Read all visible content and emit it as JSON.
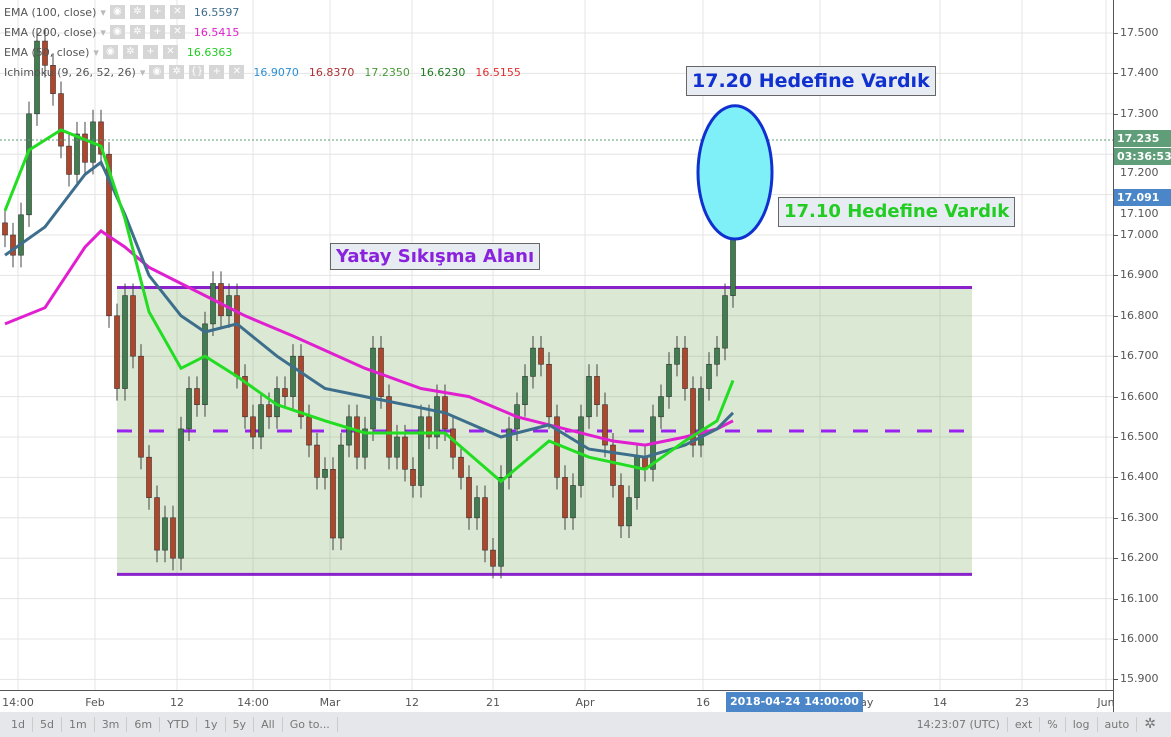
{
  "legend": [
    {
      "name": "EMA (100, close)",
      "values": [
        "16.5597"
      ],
      "colors": [
        "#3d6e8c"
      ]
    },
    {
      "name": "EMA (200, close)",
      "values": [
        "16.5415"
      ],
      "colors": [
        "#e020d0"
      ]
    },
    {
      "name": "EMA (50, close)",
      "values": [
        "16.6363"
      ],
      "colors": [
        "#22cc22"
      ]
    },
    {
      "name": "Ichimoku (9, 26, 52, 26)",
      "values": [
        "16.9070",
        "16.8370",
        "17.2350",
        "16.6230",
        "16.5155"
      ],
      "colors": [
        "#2a8fd6",
        "#a33",
        "#4a9a3a",
        "#1f7a1f",
        "#e03030"
      ]
    }
  ],
  "annotations": {
    "range_label": "Yatay Sıkışma Alanı",
    "target1": "17.20 Hedefine Vardık",
    "target2": "17.10 Hedefine Vardık"
  },
  "price_axis": {
    "ticks": [
      "17.500",
      "17.400",
      "17.300",
      "17.200",
      "17.100",
      "17.000",
      "16.900",
      "16.800",
      "16.700",
      "16.600",
      "16.500",
      "16.400",
      "16.300",
      "16.200",
      "16.100",
      "16.000",
      "15.900"
    ],
    "last_price": "17.235",
    "countdown": "03:36:53",
    "crosshair_price": "17.091",
    "last_color": "#5f9e78",
    "crosshair_color": "#4a86c8"
  },
  "time_axis": {
    "ticks": [
      "14:00",
      "Feb",
      "12",
      "14:00",
      "Mar",
      "12",
      "21",
      "Apr",
      "16",
      "May",
      "14",
      "23",
      "Jun"
    ],
    "crosshair_time": "2018-04-24 14:00:00"
  },
  "toolbar": {
    "ranges": [
      "1d",
      "5d",
      "1m",
      "3m",
      "6m",
      "YTD",
      "1y",
      "5y",
      "All",
      "Go to..."
    ],
    "clock": "14:23:07 (UTC)",
    "options": [
      "ext",
      "%",
      "log",
      "auto"
    ]
  },
  "chart_data": {
    "type": "candlestick",
    "ylim": [
      15.85,
      17.6
    ],
    "grid": true,
    "up_color": "#3f7f4f",
    "down_color": "#b0452a",
    "close": [
      17.0,
      16.95,
      17.05,
      17.3,
      17.48,
      17.42,
      17.35,
      17.22,
      17.15,
      17.25,
      17.18,
      17.28,
      17.2,
      16.8,
      16.62,
      16.85,
      16.7,
      16.45,
      16.35,
      16.22,
      16.3,
      16.2,
      16.52,
      16.62,
      16.58,
      16.78,
      16.88,
      16.8,
      16.85,
      16.65,
      16.55,
      16.5,
      16.58,
      16.55,
      16.62,
      16.6,
      16.7,
      16.55,
      16.48,
      16.4,
      16.42,
      16.25,
      16.48,
      16.55,
      16.45,
      16.52,
      16.72,
      16.6,
      16.45,
      16.5,
      16.42,
      16.38,
      16.55,
      16.5,
      16.6,
      16.52,
      16.45,
      16.4,
      16.3,
      16.35,
      16.22,
      16.18,
      16.4,
      16.52,
      16.58,
      16.65,
      16.72,
      16.68,
      16.55,
      16.4,
      16.3,
      16.38,
      16.55,
      16.65,
      16.58,
      16.48,
      16.38,
      16.28,
      16.35,
      16.45,
      16.42,
      16.55,
      16.6,
      16.68,
      16.72,
      16.62,
      16.48,
      16.62,
      16.68,
      16.72,
      16.85,
      17.235
    ],
    "ema50": [
      [
        0,
        17.06
      ],
      [
        3,
        17.21
      ],
      [
        7,
        17.26
      ],
      [
        12,
        17.22
      ],
      [
        15,
        17.04
      ],
      [
        18,
        16.81
      ],
      [
        22,
        16.67
      ],
      [
        25,
        16.7
      ],
      [
        29,
        16.65
      ],
      [
        34,
        16.58
      ],
      [
        40,
        16.54
      ],
      [
        45,
        16.51
      ],
      [
        50,
        16.51
      ],
      [
        55,
        16.51
      ],
      [
        62,
        16.39
      ],
      [
        68,
        16.49
      ],
      [
        73,
        16.45
      ],
      [
        80,
        16.42
      ],
      [
        85,
        16.49
      ],
      [
        89,
        16.54
      ],
      [
        91,
        16.64
      ]
    ],
    "ema100": [
      [
        0,
        16.95
      ],
      [
        5,
        17.02
      ],
      [
        10,
        17.15
      ],
      [
        12,
        17.18
      ],
      [
        15,
        17.05
      ],
      [
        18,
        16.9
      ],
      [
        22,
        16.8
      ],
      [
        25,
        16.76
      ],
      [
        29,
        16.78
      ],
      [
        34,
        16.7
      ],
      [
        40,
        16.62
      ],
      [
        45,
        16.6
      ],
      [
        50,
        16.58
      ],
      [
        55,
        16.56
      ],
      [
        62,
        16.5
      ],
      [
        68,
        16.53
      ],
      [
        73,
        16.47
      ],
      [
        80,
        16.45
      ],
      [
        85,
        16.48
      ],
      [
        89,
        16.52
      ],
      [
        91,
        16.56
      ]
    ],
    "ema200": [
      [
        0,
        16.78
      ],
      [
        5,
        16.82
      ],
      [
        10,
        16.97
      ],
      [
        12,
        17.01
      ],
      [
        15,
        16.97
      ],
      [
        18,
        16.92
      ],
      [
        22,
        16.88
      ],
      [
        26,
        16.84
      ],
      [
        30,
        16.8
      ],
      [
        36,
        16.75
      ],
      [
        45,
        16.67
      ],
      [
        52,
        16.62
      ],
      [
        58,
        16.6
      ],
      [
        64,
        16.55
      ],
      [
        70,
        16.52
      ],
      [
        76,
        16.49
      ],
      [
        80,
        16.48
      ],
      [
        85,
        16.5
      ],
      [
        89,
        16.52
      ],
      [
        91,
        16.54
      ]
    ],
    "range_top": 16.87,
    "range_bottom": 16.16,
    "range_mid": 16.515,
    "target_high": 17.32,
    "target_low": 16.99
  }
}
